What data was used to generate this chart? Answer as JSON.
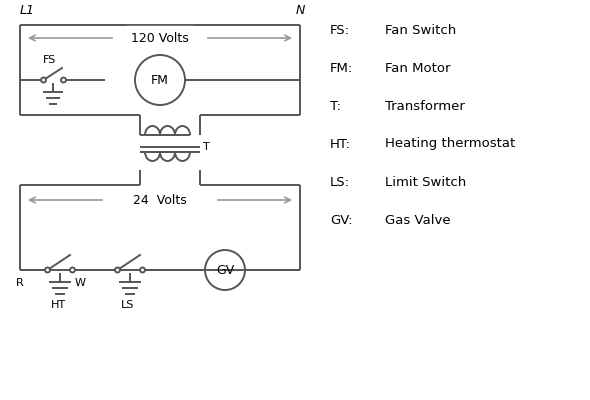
{
  "bg_color": "#ffffff",
  "line_color": "#555555",
  "arrow_color": "#999999",
  "text_color": "#000000",
  "legend": {
    "FS": "Fan Switch",
    "FM": "Fan Motor",
    "T": "Transformer",
    "HT": "Heating thermostat",
    "LS": "Limit Switch",
    "GV": "Gas Valve"
  },
  "figsize": [
    5.9,
    4.0
  ],
  "dpi": 100,
  "xlim": [
    0,
    59
  ],
  "ylim": [
    0,
    40
  ]
}
